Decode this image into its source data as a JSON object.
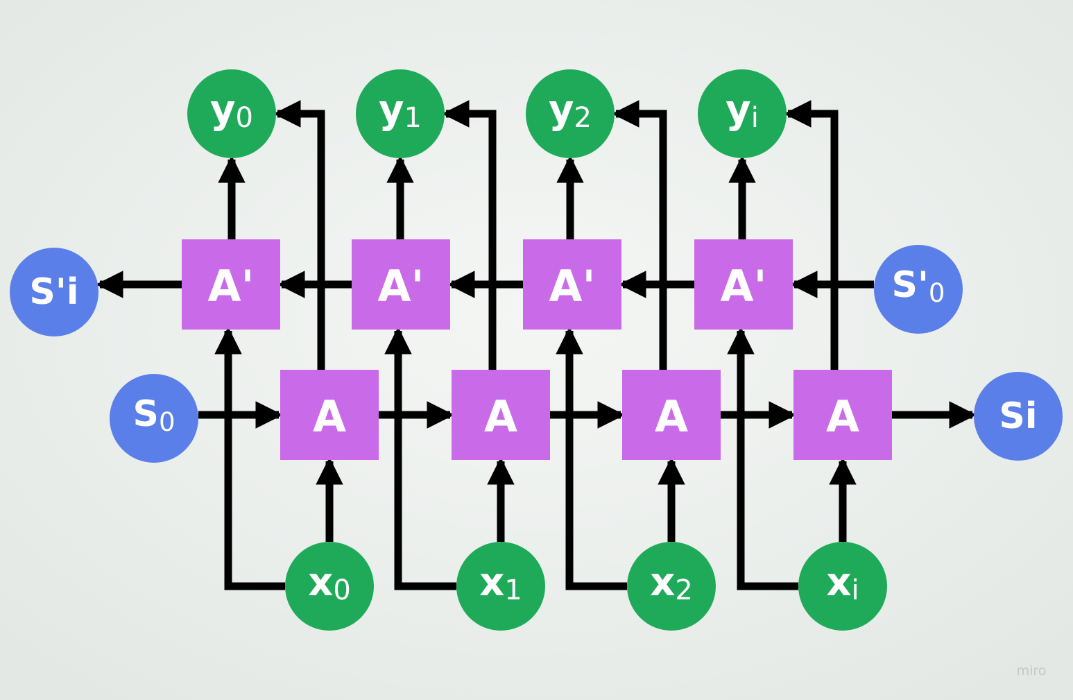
{
  "diagram": {
    "colors": {
      "output_node": "#1faa59",
      "input_node": "#1faa59",
      "state_node": "#5b7fe8",
      "forward_cell": "#c96be8",
      "backward_cell": "#c96be8",
      "arrow": "#000000",
      "label": "#ffffff",
      "background": "#eef1ef"
    },
    "outputs": [
      {
        "base": "y",
        "sub": "0"
      },
      {
        "base": "y",
        "sub": "1"
      },
      {
        "base": "y",
        "sub": "2"
      },
      {
        "base": "y",
        "sub": "i"
      }
    ],
    "inputs": [
      {
        "base": "x",
        "sub": "0"
      },
      {
        "base": "x",
        "sub": "1"
      },
      {
        "base": "x",
        "sub": "2"
      },
      {
        "base": "x",
        "sub": "i"
      }
    ],
    "backward_cells": [
      "A'",
      "A'",
      "A'",
      "A'"
    ],
    "forward_cells": [
      "A",
      "A",
      "A",
      "A"
    ],
    "states": {
      "forward_start": {
        "base": "S",
        "sub": "0"
      },
      "forward_end": {
        "base": "Si",
        "sub": ""
      },
      "backward_start": {
        "base": "S'",
        "sub": "0"
      },
      "backward_end": {
        "base": "S'i",
        "sub": ""
      }
    },
    "watermark": "miro"
  }
}
